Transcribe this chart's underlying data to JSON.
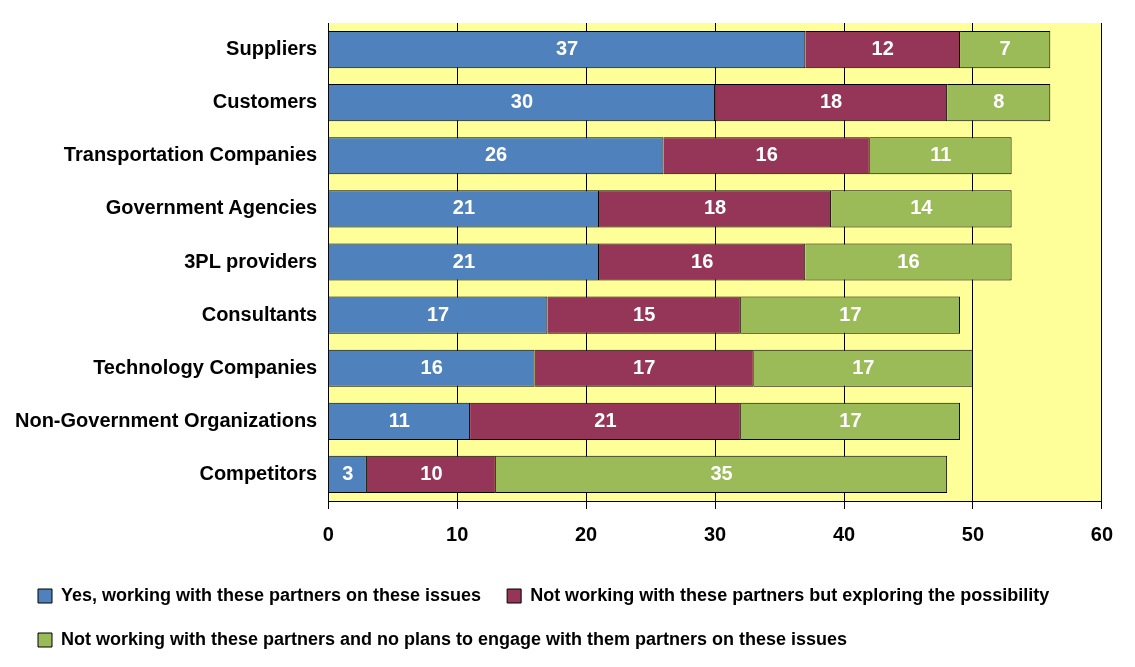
{
  "chart_data": {
    "type": "bar",
    "orientation": "horizontal",
    "stacked": true,
    "categories": [
      "Suppliers",
      "Customers",
      "Transportation Companies",
      "Government Agencies",
      "3PL providers",
      "Consultants",
      "Technology Companies",
      "Non-Government Organizations",
      "Competitors"
    ],
    "series": [
      {
        "name": "Yes, working with these partners on these issues",
        "color": "#4f81bd",
        "values": [
          37,
          30,
          26,
          21,
          21,
          17,
          16,
          11,
          3
        ]
      },
      {
        "name": "Not working with these partners but exploring the possibility",
        "color": "#953558",
        "values": [
          12,
          18,
          16,
          18,
          16,
          15,
          17,
          21,
          10
        ]
      },
      {
        "name": "Not working with these partners and no plans to engage with them partners on these issues",
        "color": "#9bbb59",
        "values": [
          7,
          8,
          11,
          14,
          16,
          17,
          17,
          17,
          35
        ]
      }
    ],
    "xlim": [
      0,
      60
    ],
    "xticks": [
      0,
      10,
      20,
      30,
      40,
      50,
      60
    ],
    "grid": "x",
    "legend": "bottom",
    "data_labels": true
  }
}
